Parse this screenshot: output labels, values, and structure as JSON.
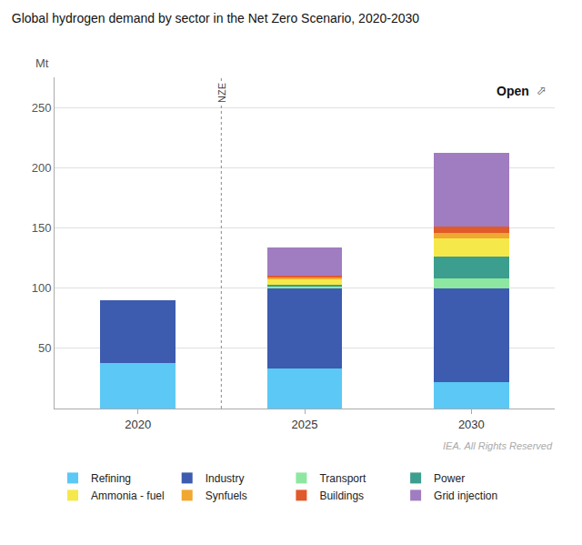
{
  "chart_data": {
    "type": "bar",
    "title": "Global hydrogen demand by sector in the Net Zero Scenario, 2020-2030",
    "ylabel": "Mt",
    "annotations": [
      "Open",
      "⬀",
      "NZE",
      "IEA. All Rights Reserved"
    ],
    "categories": [
      "2020",
      "2025",
      "2030"
    ],
    "series": [
      {
        "name": "Refining",
        "color": "#5BC8F5",
        "values": [
          38,
          33,
          22
        ]
      },
      {
        "name": "Industry",
        "color": "#3D5BAF",
        "values": [
          52,
          67,
          78
        ]
      },
      {
        "name": "Transport",
        "color": "#8EE7A0",
        "values": [
          0,
          1,
          8
        ]
      },
      {
        "name": "Power",
        "color": "#3B9E8E",
        "values": [
          0,
          2,
          18
        ]
      },
      {
        "name": "Ammonia - fuel",
        "color": "#F5E84A",
        "values": [
          0,
          4,
          15
        ]
      },
      {
        "name": "Synfuels",
        "color": "#F0A830",
        "values": [
          0,
          2,
          5
        ]
      },
      {
        "name": "Buildings",
        "color": "#E05A2B",
        "values": [
          0,
          1,
          5
        ]
      },
      {
        "name": "Grid injection",
        "color": "#A07DC0",
        "values": [
          0,
          24,
          61
        ]
      }
    ],
    "stacked": true,
    "ylim": [
      0,
      275
    ],
    "yticks": [
      50,
      100,
      150,
      200,
      250
    ],
    "grid": true,
    "legend": "bottom"
  }
}
